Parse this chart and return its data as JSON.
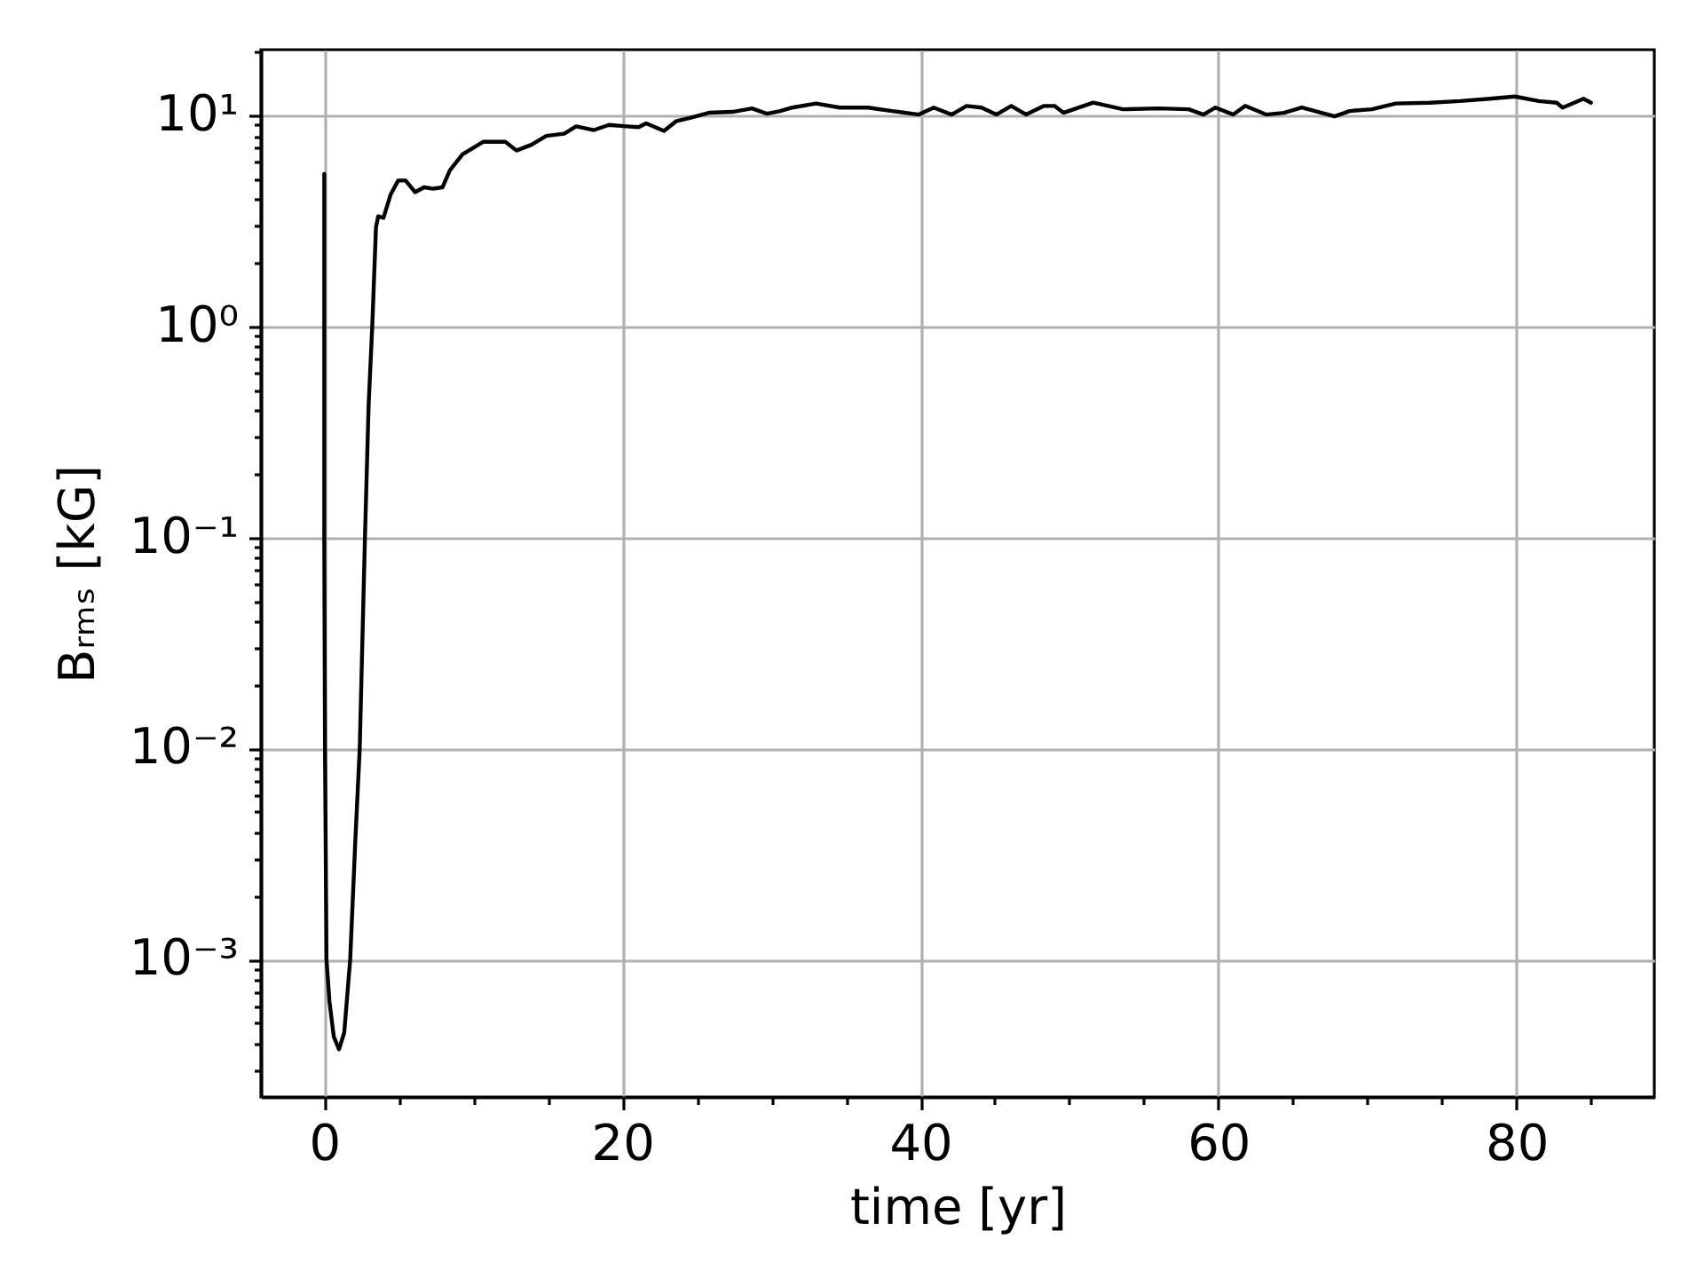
{
  "chart_data": {
    "type": "line",
    "xlabel": "time [yr]",
    "ylabel": "Bᵣₘₛ [kG]",
    "x": [
      0,
      0,
      0,
      0.05,
      0.15,
      0.35,
      0.64,
      0.99,
      1.34,
      1.74,
      2.08,
      2.38,
      2.73,
      2.98,
      3.22,
      3.47,
      3.62,
      3.97,
      4.46,
      4.96,
      5.46,
      6.1,
      6.7,
      7.29,
      7.94,
      8.43,
      9.28,
      10.66,
      12.15,
      12.9,
      13.9,
      14.9,
      16.1,
      16.9,
      18.1,
      19.1,
      20.3,
      21.1,
      21.6,
      22.8,
      23.6,
      24.6,
      25.8,
      27.4,
      28.7,
      29.7,
      30.6,
      31.4,
      33.0,
      34.6,
      36.5,
      38.1,
      39.9,
      40.9,
      42.1,
      43.1,
      44.1,
      45.1,
      46.1,
      47.1,
      48.3,
      49.0,
      49.6,
      51.6,
      53.6,
      56.0,
      58.0,
      59.0,
      59.8,
      61.0,
      61.8,
      63.2,
      64.4,
      65.6,
      67.8,
      68.8,
      70.3,
      71.9,
      74.2,
      76.2,
      78.2,
      79.9,
      81.5,
      82.7,
      83.1,
      84.5,
      85.0
    ],
    "series": [
      {
        "color": "#000000",
        "values": [
          5.28,
          1,
          0.1,
          0.01,
          0.001,
          0.00063,
          0.00043,
          0.000375,
          0.00045,
          0.001,
          0.0036,
          0.01,
          0.1,
          0.43,
          1,
          2.95,
          3.33,
          3.27,
          4.23,
          4.92,
          4.92,
          4.33,
          4.57,
          4.5,
          4.57,
          5.5,
          6.55,
          7.5,
          7.5,
          6.82,
          7.26,
          8.0,
          8.2,
          8.88,
          8.53,
          9.02,
          8.88,
          8.8,
          9.17,
          8.45,
          9.38,
          9.77,
          10.3,
          10.4,
          10.8,
          10.2,
          10.5,
          10.9,
          11.4,
          10.9,
          10.9,
          10.5,
          10.1,
          10.9,
          10.1,
          11.1,
          10.9,
          10.1,
          11.1,
          10.1,
          11.1,
          11.1,
          10.3,
          11.5,
          10.7,
          10.8,
          10.7,
          10.1,
          10.9,
          10.1,
          11.1,
          10.1,
          10.3,
          10.9,
          9.9,
          10.5,
          10.7,
          11.4,
          11.5,
          11.7,
          12.0,
          12.3,
          11.7,
          11.5,
          10.9,
          12.0,
          11.5
        ]
      }
    ],
    "xlim": [
      -4.25,
      89.25
    ],
    "xticks": [
      0,
      {
        "value": 5,
        "label": null
      },
      {
        "value": 10,
        "label": null
      },
      {
        "value": 15,
        "label": null
      },
      20,
      {
        "value": 25,
        "label": null
      },
      {
        "value": 30,
        "label": null
      },
      {
        "value": 35,
        "label": null
      },
      40,
      {
        "value": 45,
        "label": null
      },
      {
        "value": 50,
        "label": null
      },
      {
        "value": 55,
        "label": null
      },
      60,
      {
        "value": 65,
        "label": null
      },
      {
        "value": 70,
        "label": null
      },
      {
        "value": 75,
        "label": null
      },
      80,
      {
        "value": 85,
        "label": null
      }
    ],
    "ylim": [
      0.000223,
      20.5
    ],
    "yticks": [
      {
        "value": 0.0003,
        "label": null
      },
      {
        "value": 0.0004,
        "label": null
      },
      {
        "value": 0.0005,
        "label": null
      },
      {
        "value": 0.0006,
        "label": null
      },
      {
        "value": 0.0007,
        "label": null
      },
      {
        "value": 0.0008,
        "label": null
      },
      {
        "value": 0.0009,
        "label": null
      },
      {
        "value": 0.001,
        "label": "10⁻³"
      },
      {
        "value": 0.002,
        "label": null
      },
      {
        "value": 0.003,
        "label": null
      },
      {
        "value": 0.004,
        "label": null
      },
      {
        "value": 0.005,
        "label": null
      },
      {
        "value": 0.006,
        "label": null
      },
      {
        "value": 0.007,
        "label": null
      },
      {
        "value": 0.008,
        "label": null
      },
      {
        "value": 0.009,
        "label": null
      },
      {
        "value": 0.01,
        "label": "10⁻²"
      },
      {
        "value": 0.02,
        "label": null
      },
      {
        "value": 0.03,
        "label": null
      },
      {
        "value": 0.04,
        "label": null
      },
      {
        "value": 0.05,
        "label": null
      },
      {
        "value": 0.06,
        "label": null
      },
      {
        "value": 0.07,
        "label": null
      },
      {
        "value": 0.08,
        "label": null
      },
      {
        "value": 0.09,
        "label": null
      },
      {
        "value": 0.1,
        "label": "10⁻¹"
      },
      {
        "value": 0.2,
        "label": null
      },
      {
        "value": 0.3,
        "label": null
      },
      {
        "value": 0.4,
        "label": null
      },
      {
        "value": 0.5,
        "label": null
      },
      {
        "value": 0.6,
        "label": null
      },
      {
        "value": 0.7,
        "label": null
      },
      {
        "value": 0.8,
        "label": null
      },
      {
        "value": 0.9,
        "label": null
      },
      {
        "value": 1,
        "label": "10⁰"
      },
      {
        "value": 2,
        "label": null
      },
      {
        "value": 3,
        "label": null
      },
      {
        "value": 4,
        "label": null
      },
      {
        "value": 5,
        "label": null
      },
      {
        "value": 6,
        "label": null
      },
      {
        "value": 7,
        "label": null
      },
      {
        "value": 8,
        "label": null
      },
      {
        "value": 9,
        "label": null
      },
      {
        "value": 10,
        "label": "10¹"
      },
      {
        "value": 20,
        "label": null
      }
    ],
    "log": "y",
    "grid": true,
    "line_style": "solid"
  }
}
